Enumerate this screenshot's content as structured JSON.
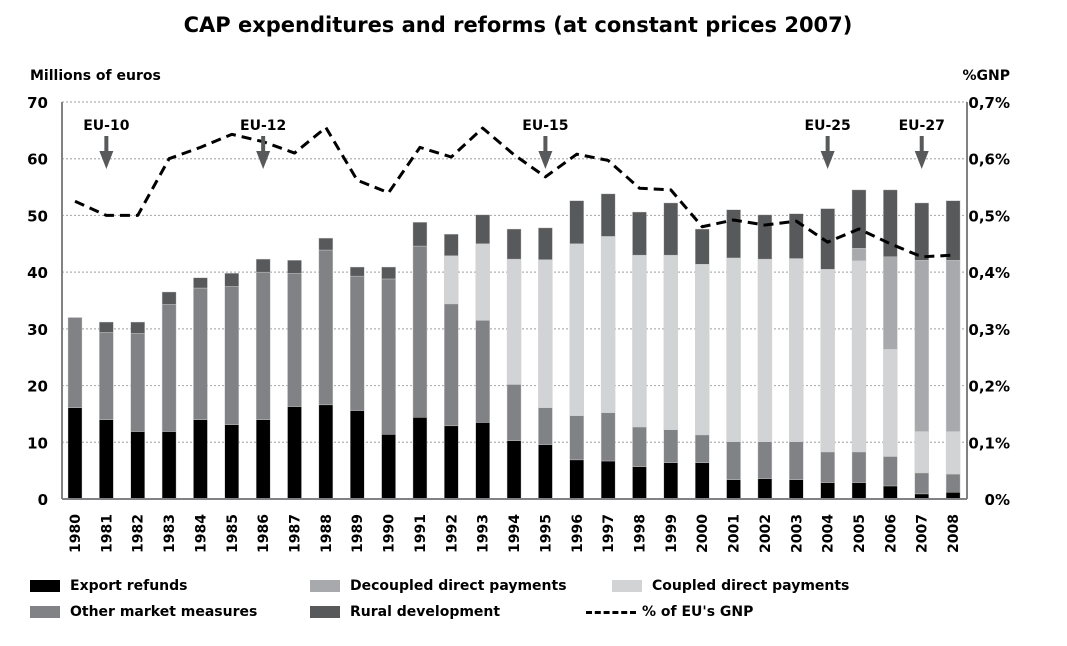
{
  "chart_data": {
    "type": "bar",
    "subtype": "stacked-bar-with-line",
    "title": "CAP expenditures and reforms (at constant prices 2007)",
    "ylabel": "Millions of euros",
    "ylabel_right": "%GNP",
    "xlabel": "",
    "ylim": [
      0,
      70
    ],
    "ylim_right": [
      0,
      0.7
    ],
    "yticks": [
      "0",
      "10",
      "20",
      "30",
      "40",
      "50",
      "60",
      "70"
    ],
    "yticks_right": [
      "0%",
      "0,1%",
      "0,2%",
      "0,3%",
      "0,4%",
      "0,5%",
      "0,6%",
      "0,7%"
    ],
    "grid": true,
    "legend_position": "bottom",
    "categories": [
      "1980",
      "1981",
      "1982",
      "1983",
      "1984",
      "1985",
      "1986",
      "1987",
      "1988",
      "1989",
      "1990",
      "1991",
      "1992",
      "1993",
      "1994",
      "1995",
      "1996",
      "1997",
      "1998",
      "1999",
      "2000",
      "2001",
      "2002",
      "2003",
      "2004",
      "2005",
      "2006",
      "2007",
      "2008"
    ],
    "series": [
      {
        "name": "Export refunds",
        "color": "#000000",
        "axis": "left",
        "kind": "bar",
        "values": [
          16.1,
          14.0,
          11.9,
          11.9,
          14.0,
          13.1,
          14.0,
          16.3,
          16.6,
          15.6,
          11.4,
          14.4,
          12.9,
          13.5,
          10.3,
          9.6,
          6.9,
          6.7,
          5.7,
          6.4,
          6.4,
          3.4,
          3.6,
          3.4,
          2.9,
          2.9,
          2.3,
          0.9,
          1.2
        ]
      },
      {
        "name": "Other market measures",
        "color": "#808285",
        "axis": "left",
        "kind": "bar",
        "values": [
          15.9,
          15.4,
          17.3,
          22.4,
          23.2,
          24.4,
          26.0,
          23.5,
          27.3,
          23.7,
          27.4,
          30.2,
          21.5,
          18.0,
          9.9,
          6.5,
          7.8,
          8.5,
          7.0,
          5.8,
          4.9,
          6.7,
          6.5,
          6.7,
          5.4,
          5.4,
          5.2,
          3.7,
          3.2
        ]
      },
      {
        "name": "Coupled direct payments",
        "color": "#d1d3d4",
        "axis": "left",
        "kind": "bar",
        "values": [
          0,
          0,
          0,
          0,
          0,
          0,
          0,
          0,
          0,
          0,
          0,
          0,
          8.5,
          13.5,
          22.1,
          26.1,
          30.3,
          31.1,
          30.3,
          30.8,
          30.1,
          32.4,
          32.2,
          32.3,
          32.2,
          33.7,
          18.9,
          7.3,
          7.5
        ]
      },
      {
        "name": "Decoupled direct payments",
        "color": "#a7a9ac",
        "axis": "left",
        "kind": "bar",
        "values": [
          0,
          0,
          0,
          0,
          0,
          0,
          0,
          0,
          0,
          0,
          0,
          0,
          0,
          0,
          0,
          0,
          0,
          0,
          0,
          0,
          0,
          0,
          0,
          0,
          0,
          2.2,
          16.3,
          30.2,
          30.2
        ]
      },
      {
        "name": "Rural development",
        "color": "#58595b",
        "axis": "left",
        "kind": "bar",
        "values": [
          0,
          1.8,
          2.0,
          2.2,
          1.8,
          2.3,
          2.3,
          2.3,
          2.1,
          1.6,
          2.1,
          4.2,
          3.8,
          5.1,
          5.3,
          5.6,
          7.6,
          7.5,
          7.6,
          9.2,
          6.2,
          8.5,
          7.8,
          7.9,
          10.7,
          10.3,
          11.8,
          10.1,
          10.5
        ]
      },
      {
        "name": "% of EU's GNP",
        "color": "#000000",
        "axis": "right",
        "kind": "line",
        "style": "dashed",
        "values": [
          0.525,
          0.5,
          0.5,
          0.6,
          0.62,
          0.643,
          0.63,
          0.61,
          0.655,
          0.562,
          0.54,
          0.62,
          0.603,
          0.654,
          0.607,
          0.568,
          0.608,
          0.597,
          0.548,
          0.545,
          0.48,
          0.492,
          0.483,
          0.49,
          0.453,
          0.476,
          0.45,
          0.427,
          0.43
        ]
      }
    ],
    "annotations": [
      {
        "label": "EU-10",
        "year": "1981"
      },
      {
        "label": "EU-12",
        "year": "1986"
      },
      {
        "label": "EU-15",
        "year": "1995"
      },
      {
        "label": "EU-25",
        "year": "2004"
      },
      {
        "label": "EU-27",
        "year": "2007"
      }
    ],
    "legend": [
      {
        "label": "Export refunds",
        "color": "#000000",
        "kind": "swatch"
      },
      {
        "label": "Other market measures",
        "color": "#808285",
        "kind": "swatch"
      },
      {
        "label": "Decoupled direct payments",
        "color": "#a7a9ac",
        "kind": "swatch"
      },
      {
        "label": "Rural development",
        "color": "#58595b",
        "kind": "swatch"
      },
      {
        "label": "Coupled direct payments",
        "color": "#d1d3d4",
        "kind": "swatch"
      },
      {
        "label": "% of EU's GNP",
        "color": "#000000",
        "kind": "dashed-line"
      }
    ]
  }
}
